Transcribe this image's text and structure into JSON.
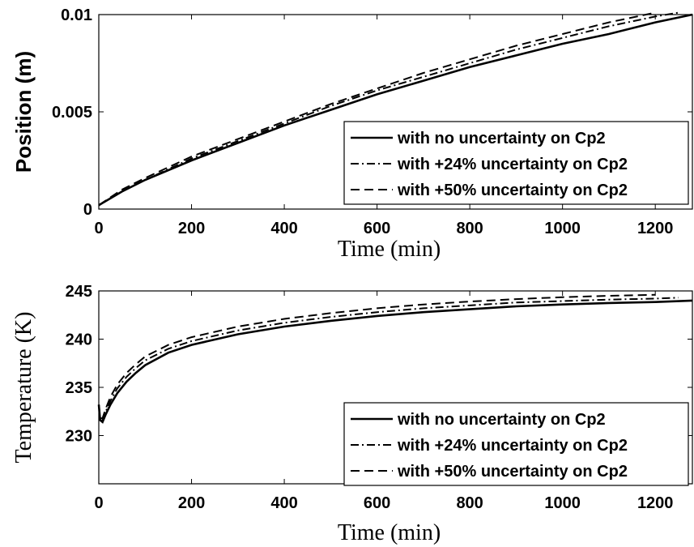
{
  "chart_data": [
    {
      "type": "line",
      "xlabel": "Time (min)",
      "ylabel": "Position (m)",
      "xlim": [
        0,
        1280
      ],
      "ylim": [
        0,
        0.01
      ],
      "xticks": [
        "0",
        "200",
        "400",
        "600",
        "800",
        "1000",
        "1200"
      ],
      "yticks": [
        "0",
        "0.005",
        "0.01"
      ],
      "grid": false,
      "legend_position": "lower-right",
      "series": [
        {
          "name": "with no uncertainty on Cp2",
          "style": "solid",
          "x": [
            0,
            50,
            100,
            200,
            300,
            400,
            500,
            600,
            700,
            800,
            900,
            1000,
            1100,
            1200,
            1280
          ],
          "y": [
            0.0002,
            0.0009,
            0.0015,
            0.0025,
            0.0034,
            0.0043,
            0.0051,
            0.0059,
            0.0066,
            0.0073,
            0.0079,
            0.0085,
            0.009,
            0.0096,
            0.01
          ]
        },
        {
          "name": "with +24% uncertainty on Cp2",
          "style": "dashdot",
          "x": [
            0,
            50,
            100,
            200,
            300,
            400,
            500,
            600,
            700,
            800,
            900,
            1000,
            1100,
            1200,
            1250
          ],
          "y": [
            0.0002,
            0.0009,
            0.0015,
            0.0026,
            0.0035,
            0.0044,
            0.0053,
            0.0061,
            0.0068,
            0.0075,
            0.0082,
            0.0088,
            0.0094,
            0.0099,
            0.0101
          ]
        },
        {
          "name": "with +50% uncertainty on Cp2",
          "style": "dashed",
          "x": [
            0,
            50,
            100,
            200,
            300,
            400,
            500,
            600,
            700,
            800,
            900,
            1000,
            1100,
            1200
          ],
          "y": [
            0.0002,
            0.001,
            0.0016,
            0.0027,
            0.0036,
            0.0045,
            0.0054,
            0.0062,
            0.007,
            0.0077,
            0.0084,
            0.009,
            0.0096,
            0.0101
          ]
        }
      ]
    },
    {
      "type": "line",
      "xlabel": "Time (min)",
      "ylabel": "Temperature (K)",
      "xlim": [
        0,
        1280
      ],
      "ylim": [
        225,
        245
      ],
      "xticks": [
        "0",
        "200",
        "400",
        "600",
        "800",
        "1000",
        "1200"
      ],
      "yticks": [
        "230",
        "235",
        "240",
        "245"
      ],
      "grid": false,
      "legend_position": "lower-right",
      "series": [
        {
          "name": "with no uncertainty on Cp2",
          "style": "solid",
          "x": [
            0,
            3,
            8,
            15,
            25,
            40,
            60,
            80,
            100,
            150,
            200,
            300,
            400,
            500,
            600,
            700,
            800,
            900,
            1000,
            1100,
            1200,
            1280
          ],
          "y": [
            233.2,
            231.6,
            231.4,
            232.2,
            233.2,
            234.4,
            235.6,
            236.5,
            237.3,
            238.6,
            239.4,
            240.5,
            241.3,
            241.9,
            242.4,
            242.8,
            243.1,
            243.4,
            243.6,
            243.75,
            243.85,
            244.0
          ]
        },
        {
          "name": "with +24% uncertainty on Cp2",
          "style": "dashdot",
          "x": [
            0,
            3,
            8,
            15,
            25,
            40,
            60,
            80,
            100,
            150,
            200,
            300,
            400,
            500,
            600,
            700,
            800,
            900,
            1000,
            1100,
            1200,
            1250
          ],
          "y": [
            233.2,
            231.7,
            231.6,
            232.5,
            233.6,
            234.9,
            236.1,
            237.0,
            237.8,
            239.0,
            239.8,
            240.9,
            241.7,
            242.3,
            242.8,
            243.2,
            243.5,
            243.8,
            243.95,
            244.1,
            244.2,
            244.3
          ]
        },
        {
          "name": "with +50% uncertainty on Cp2",
          "style": "dashed",
          "x": [
            0,
            3,
            8,
            15,
            25,
            40,
            60,
            80,
            100,
            150,
            200,
            300,
            400,
            500,
            600,
            700,
            800,
            900,
            1000,
            1100,
            1200
          ],
          "y": [
            233.2,
            231.8,
            231.8,
            232.8,
            234.0,
            235.3,
            236.5,
            237.4,
            238.2,
            239.4,
            240.2,
            241.3,
            242.1,
            242.7,
            243.2,
            243.6,
            243.9,
            244.15,
            244.35,
            244.5,
            244.6
          ]
        }
      ]
    }
  ]
}
